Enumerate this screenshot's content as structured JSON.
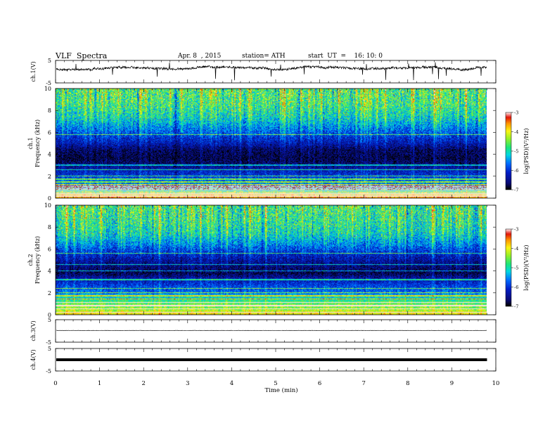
{
  "header": {
    "title": "VLF  Spectra",
    "date": "Apr. 8  , 2015",
    "station": "station= ATH",
    "start": "start  UT  =    16: 10: 0"
  },
  "chart_data": [
    {
      "type": "line",
      "name": "ch1-waveform",
      "ylabel": "ch.1(V)",
      "ylim": [
        -5,
        5
      ],
      "yticks": [
        "5",
        "-5"
      ],
      "xlim": [
        0,
        10
      ],
      "data_extent_min": 9.8,
      "baseline_v": 1.5,
      "colors": {
        "trace": "#000000"
      }
    },
    {
      "type": "heatmap",
      "name": "ch1-spectrogram",
      "ylabel": [
        "ch.1",
        "Frequency  (kHz)"
      ],
      "ylim": [
        0,
        10
      ],
      "yticks": [
        "0",
        "2",
        "4",
        "6",
        "8",
        "10"
      ],
      "xlim": [
        0,
        10
      ],
      "data_extent_min": 9.8,
      "colorbar": {
        "label": "log(PSD)(V²/Hz)",
        "ticks": [
          "-3",
          "-4",
          "-5",
          "-6",
          "-7"
        ],
        "range": [
          -7,
          -3
        ]
      },
      "profile_khz": [
        [
          0,
          -3.6
        ],
        [
          0.4,
          -4.2
        ],
        [
          0.8,
          -5.3
        ],
        [
          1.2,
          -5.6
        ],
        [
          1.8,
          -5.9
        ],
        [
          2.2,
          -6.1
        ],
        [
          2.6,
          -6.3
        ],
        [
          3.0,
          -6.6
        ],
        [
          3.6,
          -6.8
        ],
        [
          4.4,
          -6.7
        ],
        [
          5.0,
          -6.3
        ],
        [
          5.6,
          -6.0
        ],
        [
          6.4,
          -5.6
        ],
        [
          7.4,
          -5.1
        ],
        [
          8.6,
          -4.8
        ],
        [
          10,
          -4.7
        ]
      ],
      "lines_khz": [
        0.15,
        0.35,
        0.5,
        0.65,
        0.8,
        1.0,
        1.2,
        1.45,
        1.7,
        2.0,
        2.6,
        3.0,
        5.8
      ],
      "seed": 11
    },
    {
      "type": "heatmap",
      "name": "ch2-spectrogram",
      "ylabel": [
        "ch.2",
        "Frequency  (kHz)"
      ],
      "ylim": [
        0,
        10
      ],
      "yticks": [
        "0",
        "2",
        "4",
        "6",
        "8",
        "10"
      ],
      "xlim": [
        0,
        10
      ],
      "data_extent_min": 9.8,
      "colorbar": {
        "label": "log(PSD)(V²/Hz)",
        "ticks": [
          "-3",
          "-4",
          "-5",
          "-6",
          "-7"
        ],
        "range": [
          -7,
          -3
        ]
      },
      "profile_khz": [
        [
          0,
          -3.9
        ],
        [
          0.5,
          -4.4
        ],
        [
          1.0,
          -4.6
        ],
        [
          1.5,
          -5.1
        ],
        [
          2.0,
          -5.7
        ],
        [
          2.6,
          -5.9
        ],
        [
          3.2,
          -6.3
        ],
        [
          3.8,
          -6.8
        ],
        [
          4.4,
          -6.6
        ],
        [
          5.0,
          -6.4
        ],
        [
          5.6,
          -6.1
        ],
        [
          6.4,
          -5.6
        ],
        [
          7.4,
          -5.1
        ],
        [
          8.6,
          -4.9
        ],
        [
          10,
          -4.8
        ]
      ],
      "lines_khz": [
        0.2,
        0.5,
        0.8,
        1.1,
        1.4,
        1.7,
        2.0,
        2.4,
        3.2,
        4.0,
        4.6,
        5.6
      ],
      "seed": 37
    },
    {
      "type": "line",
      "name": "ch3-waveform",
      "ylabel": "ch.3(V)",
      "ylim": [
        -5,
        5
      ],
      "yticks": [
        "5",
        "-5"
      ],
      "xlim": [
        0,
        10
      ],
      "data_extent_min": 9.8,
      "baseline_v": 0.2,
      "colors": {
        "trace": "#000000"
      }
    },
    {
      "type": "line",
      "name": "ch4-waveform",
      "ylabel": "ch.4(V)",
      "ylim": [
        -5,
        5
      ],
      "yticks": [
        "5",
        "-5"
      ],
      "xlim": [
        0,
        10
      ],
      "data_extent_min": 9.8,
      "baseline_v": 0.0,
      "colors": {
        "trace": "#000000"
      }
    }
  ],
  "x_axis": {
    "label": "Time  (min)",
    "ticks": [
      "0",
      "1",
      "2",
      "3",
      "4",
      "5",
      "6",
      "7",
      "8",
      "9",
      "10"
    ]
  }
}
